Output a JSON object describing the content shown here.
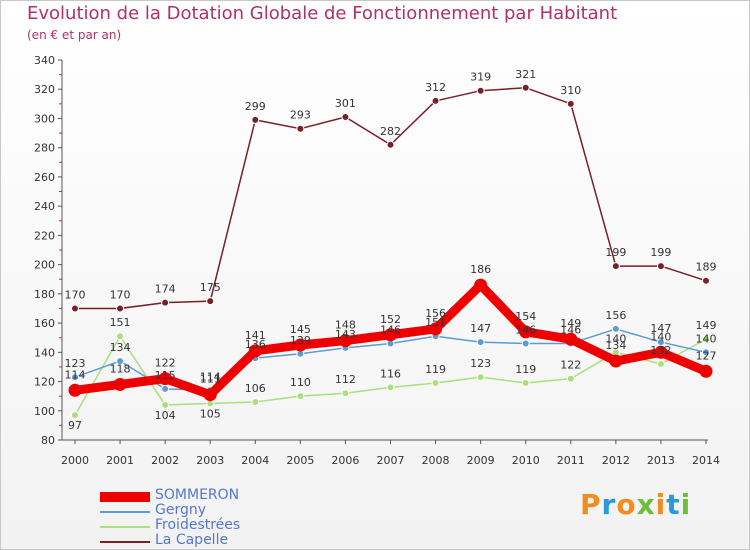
{
  "title": "Evolution de la Dotation Globale de Fonctionnement par Habitant",
  "subtitle": "(en € et par an)",
  "logo": {
    "text": "Proxiti",
    "colors": [
      "#f28c1e",
      "#2a9ad6",
      "#f28c1e",
      "#6cbf3c",
      "#f28c1e",
      "#2a9ad6",
      "#6cbf3c"
    ]
  },
  "chart_data": {
    "type": "line",
    "title": "Evolution de la Dotation Globale de Fonctionnement par Habitant",
    "subtitle": "(en € et par an)",
    "xlabel": "",
    "ylabel": "",
    "x": [
      "2000",
      "2001",
      "2002",
      "2003",
      "2004",
      "2005",
      "2006",
      "2007",
      "2008",
      "2009",
      "2010",
      "2011",
      "2012",
      "2013",
      "2014"
    ],
    "ylim": [
      80,
      340
    ],
    "yticks": [
      80,
      100,
      120,
      140,
      160,
      180,
      200,
      220,
      240,
      260,
      280,
      300,
      320,
      340
    ],
    "grid": false,
    "legend_position": "bottom-left",
    "series": [
      {
        "name": "La Capelle",
        "color": "#7a1e28",
        "values": [
          170,
          170,
          174,
          175,
          299,
          293,
          301,
          282,
          312,
          319,
          321,
          310,
          199,
          199,
          189
        ]
      },
      {
        "name": "Froidestrées",
        "color": "#a8e07c",
        "values": [
          97,
          151,
          104,
          105,
          106,
          110,
          112,
          116,
          119,
          123,
          119,
          122,
          140,
          132,
          149
        ]
      },
      {
        "name": "Gergny",
        "color": "#5b9bd5",
        "values": [
          123,
          134,
          115,
          114,
          136,
          139,
          143,
          146,
          151,
          147,
          146,
          146,
          156,
          147,
          140
        ]
      },
      {
        "name": "SOMMERON",
        "color": "#ee0000",
        "values": [
          114,
          118,
          122,
          111,
          141,
          145,
          148,
          152,
          156,
          186,
          154,
          149,
          134,
          140,
          127
        ]
      }
    ],
    "legend": [
      "SOMMERON",
      "Gergny",
      "Froidestrées",
      "La Capelle"
    ]
  }
}
